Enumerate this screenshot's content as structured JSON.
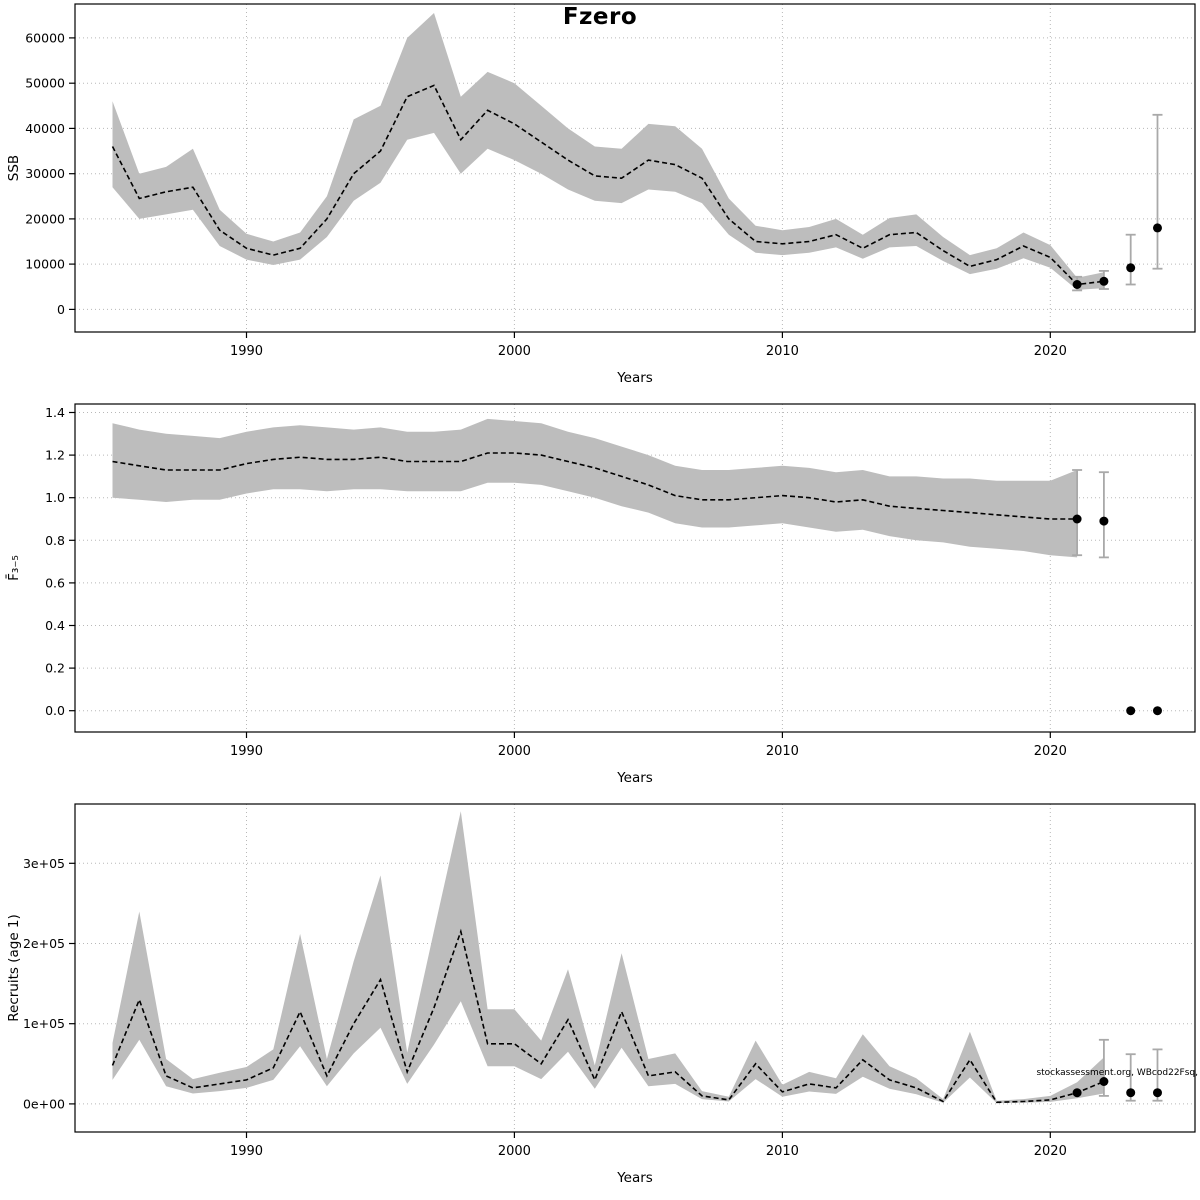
{
  "title": "Fzero",
  "watermark": "stockassessment.org, WBcod22Fsq,",
  "colors": {
    "band": "#bdbdbd",
    "line": "#000000",
    "grid": "#b8b8b8",
    "error_bar": "#a9a9a9",
    "point": "#000000"
  },
  "chart_data": [
    {
      "type": "line",
      "name": "ssb",
      "title": "Fzero",
      "xlabel": "Years",
      "ylabel": "SSB",
      "legend": "none",
      "grid": true,
      "xlim": [
        1983.6,
        2025.4
      ],
      "ylim": [
        -5000,
        67500
      ],
      "xticks": [
        1990,
        2000,
        2010,
        2020
      ],
      "xtick_labels": [
        "1990",
        "2000",
        "2010",
        "2020"
      ],
      "yticks": [
        0,
        10000,
        20000,
        30000,
        40000,
        50000,
        60000
      ],
      "ytick_labels": [
        "0",
        "10000",
        "20000",
        "30000",
        "40000",
        "50000",
        "60000"
      ],
      "x": [
        1985,
        1986,
        1987,
        1988,
        1989,
        1990,
        1991,
        1992,
        1993,
        1994,
        1995,
        1996,
        1997,
        1998,
        1999,
        2000,
        2001,
        2002,
        2003,
        2004,
        2005,
        2006,
        2007,
        2008,
        2009,
        2010,
        2011,
        2012,
        2013,
        2014,
        2015,
        2016,
        2017,
        2018,
        2019,
        2020,
        2021,
        2022
      ],
      "values": [
        36000,
        24500,
        26000,
        27000,
        17500,
        13500,
        12000,
        13500,
        20000,
        30000,
        35000,
        47000,
        49500,
        37500,
        44000,
        41000,
        37000,
        33000,
        29500,
        29000,
        33000,
        32000,
        29000,
        20000,
        15000,
        14500,
        15000,
        16500,
        13500,
        16500,
        17000,
        13000,
        9500,
        11000,
        14000,
        11500,
        5500,
        6200
      ],
      "band": {
        "lower": [
          27000,
          20000,
          21000,
          22000,
          14000,
          11000,
          9800,
          11000,
          16000,
          24000,
          28000,
          37500,
          39000,
          30000,
          35500,
          33000,
          30000,
          26500,
          24000,
          23500,
          26500,
          26000,
          23500,
          16500,
          12500,
          12000,
          12500,
          13700,
          11200,
          13700,
          14000,
          10700,
          7800,
          9000,
          11300,
          9200,
          4300,
          4700
        ],
        "upper": [
          46000,
          30000,
          31500,
          35500,
          22000,
          16700,
          15000,
          17000,
          25000,
          42000,
          45000,
          60000,
          65500,
          47000,
          52500,
          50000,
          45000,
          40000,
          36000,
          35500,
          41000,
          40500,
          35500,
          24500,
          18500,
          17500,
          18200,
          20000,
          16500,
          20200,
          21000,
          16000,
          12000,
          13500,
          17000,
          14200,
          7000,
          8200
        ]
      },
      "points": [
        {
          "x": 2021,
          "y": 5500,
          "lo": 4200,
          "hi": 7200
        },
        {
          "x": 2022,
          "y": 6200,
          "lo": 4500,
          "hi": 8500
        },
        {
          "x": 2023,
          "y": 9200,
          "lo": 5500,
          "hi": 16500
        },
        {
          "x": 2024,
          "y": 18000,
          "lo": 9000,
          "hi": 43000
        }
      ]
    },
    {
      "type": "line",
      "name": "fbar",
      "title": "",
      "xlabel": "Years",
      "ylabel": "F̄₃₋₅",
      "legend": "none",
      "grid": true,
      "xlim": [
        1983.6,
        2025.4
      ],
      "ylim": [
        -0.1,
        1.44
      ],
      "xticks": [
        1990,
        2000,
        2010,
        2020
      ],
      "xtick_labels": [
        "1990",
        "2000",
        "2010",
        "2020"
      ],
      "yticks": [
        0.0,
        0.2,
        0.4,
        0.6,
        0.8,
        1.0,
        1.2,
        1.4
      ],
      "ytick_labels": [
        "0.0",
        "0.2",
        "0.4",
        "0.6",
        "0.8",
        "1.0",
        "1.2",
        "1.4"
      ],
      "x": [
        1985,
        1986,
        1987,
        1988,
        1989,
        1990,
        1991,
        1992,
        1993,
        1994,
        1995,
        1996,
        1997,
        1998,
        1999,
        2000,
        2001,
        2002,
        2003,
        2004,
        2005,
        2006,
        2007,
        2008,
        2009,
        2010,
        2011,
        2012,
        2013,
        2014,
        2015,
        2016,
        2017,
        2018,
        2019,
        2020,
        2021
      ],
      "values": [
        1.17,
        1.15,
        1.13,
        1.13,
        1.13,
        1.16,
        1.18,
        1.19,
        1.18,
        1.18,
        1.19,
        1.17,
        1.17,
        1.17,
        1.21,
        1.21,
        1.2,
        1.17,
        1.14,
        1.1,
        1.06,
        1.01,
        0.99,
        0.99,
        1.0,
        1.01,
        1.0,
        0.98,
        0.99,
        0.96,
        0.95,
        0.94,
        0.93,
        0.92,
        0.91,
        0.9,
        0.9
      ],
      "band": {
        "lower": [
          1.0,
          0.99,
          0.98,
          0.99,
          0.99,
          1.02,
          1.04,
          1.04,
          1.03,
          1.04,
          1.04,
          1.03,
          1.03,
          1.03,
          1.07,
          1.07,
          1.06,
          1.03,
          1.0,
          0.96,
          0.93,
          0.88,
          0.86,
          0.86,
          0.87,
          0.88,
          0.86,
          0.84,
          0.85,
          0.82,
          0.8,
          0.79,
          0.77,
          0.76,
          0.75,
          0.73,
          0.72
        ],
        "upper": [
          1.35,
          1.32,
          1.3,
          1.29,
          1.28,
          1.31,
          1.33,
          1.34,
          1.33,
          1.32,
          1.33,
          1.31,
          1.31,
          1.32,
          1.37,
          1.36,
          1.35,
          1.31,
          1.28,
          1.24,
          1.2,
          1.15,
          1.13,
          1.13,
          1.14,
          1.15,
          1.14,
          1.12,
          1.13,
          1.1,
          1.1,
          1.09,
          1.09,
          1.08,
          1.08,
          1.08,
          1.13
        ]
      },
      "points": [
        {
          "x": 2021,
          "y": 0.9,
          "lo": 0.73,
          "hi": 1.13
        },
        {
          "x": 2022,
          "y": 0.89,
          "lo": 0.72,
          "hi": 1.12
        },
        {
          "x": 2023,
          "y": 0.0
        },
        {
          "x": 2024,
          "y": 0.0
        }
      ]
    },
    {
      "type": "line",
      "name": "recruits",
      "title": "",
      "xlabel": "Years",
      "ylabel": "Recruits (age 1)",
      "legend": "none",
      "grid": true,
      "xlim": [
        1983.6,
        2025.4
      ],
      "ylim": [
        -35000,
        374000
      ],
      "xticks": [
        1990,
        2000,
        2010,
        2020
      ],
      "xtick_labels": [
        "1990",
        "2000",
        "2010",
        "2020"
      ],
      "yticks": [
        0,
        100000,
        200000,
        300000
      ],
      "ytick_labels": [
        "0e+00",
        "1e+05",
        "2e+05",
        "3e+05"
      ],
      "x": [
        1985,
        1986,
        1987,
        1988,
        1989,
        1990,
        1991,
        1992,
        1993,
        1994,
        1995,
        1996,
        1997,
        1998,
        1999,
        2000,
        2001,
        2002,
        2003,
        2004,
        2005,
        2006,
        2007,
        2008,
        2009,
        2010,
        2011,
        2012,
        2013,
        2014,
        2015,
        2016,
        2017,
        2018,
        2019,
        2020,
        2021,
        2022
      ],
      "values": [
        48000,
        130000,
        35000,
        20000,
        25000,
        30000,
        45000,
        115000,
        35000,
        100000,
        155000,
        40000,
        120000,
        215000,
        75000,
        75000,
        50000,
        105000,
        30000,
        115000,
        35000,
        40000,
        10000,
        5000,
        50000,
        15000,
        25000,
        20000,
        55000,
        30000,
        20000,
        3000,
        55000,
        2000,
        3000,
        5000,
        14000,
        28000
      ],
      "band": {
        "lower": [
          30000,
          80000,
          22000,
          13000,
          16000,
          20000,
          30000,
          72000,
          22000,
          63000,
          95000,
          25000,
          74000,
          128000,
          47000,
          47000,
          31000,
          65000,
          19000,
          70000,
          22000,
          25000,
          6000,
          3000,
          31000,
          9000,
          15500,
          12500,
          34000,
          19000,
          12000,
          1500,
          33000,
          1000,
          1500,
          2500,
          7000,
          13000
        ],
        "upper": [
          76000,
          240000,
          56000,
          31000,
          39000,
          46000,
          68000,
          212000,
          56000,
          178000,
          285000,
          64000,
          216000,
          365000,
          118000,
          118000,
          79000,
          168000,
          48000,
          188000,
          56000,
          63000,
          16000,
          9000,
          79000,
          24000,
          40000,
          32000,
          87000,
          47000,
          32000,
          6000,
          90000,
          4000,
          6000,
          10000,
          27000,
          58000
        ]
      },
      "points": [
        {
          "x": 2021,
          "y": 14000
        },
        {
          "x": 2022,
          "y": 28000,
          "lo": 10000,
          "hi": 80000
        },
        {
          "x": 2023,
          "y": 14000,
          "lo": 4000,
          "hi": 62000
        },
        {
          "x": 2024,
          "y": 14000,
          "lo": 4000,
          "hi": 68000
        }
      ]
    }
  ]
}
